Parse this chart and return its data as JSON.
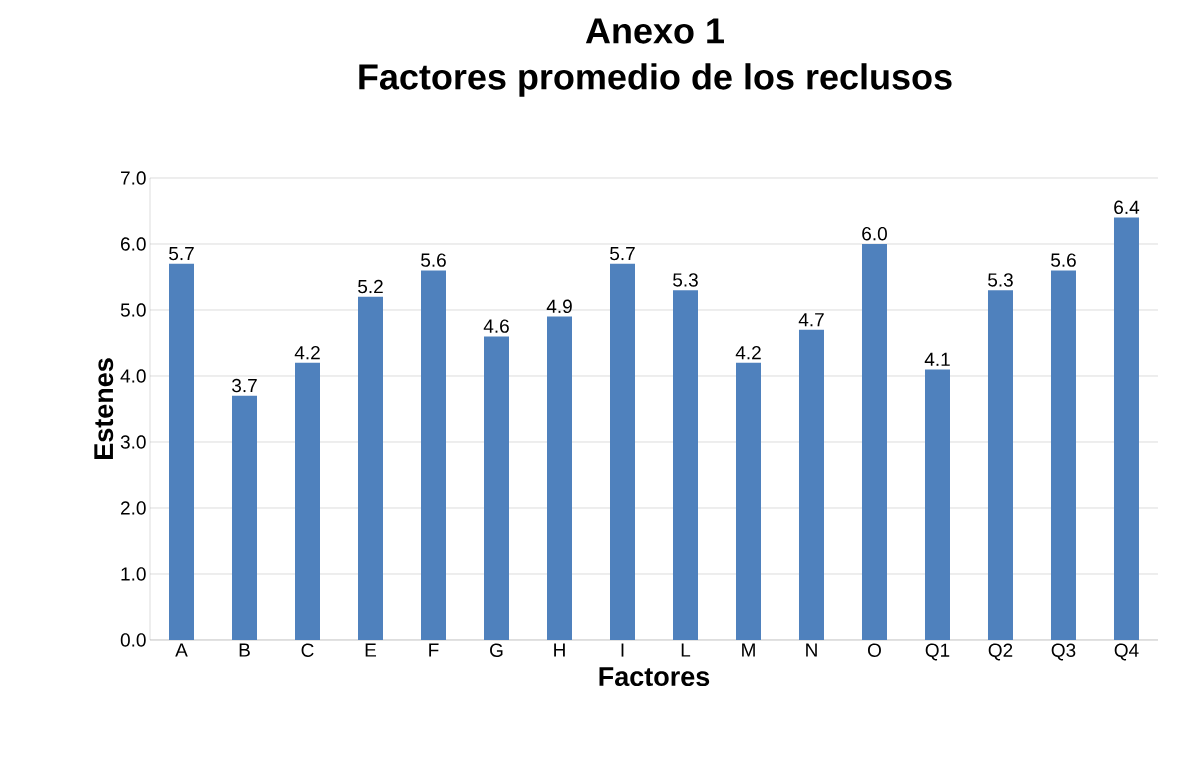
{
  "chart_data": {
    "type": "bar",
    "title": "Anexo 1",
    "subtitle": "Factores promedio de los reclusos",
    "xlabel": "Factores",
    "ylabel": "Estenes",
    "categories": [
      "A",
      "B",
      "C",
      "E",
      "F",
      "G",
      "H",
      "I",
      "L",
      "M",
      "N",
      "O",
      "Q1",
      "Q2",
      "Q3",
      "Q4"
    ],
    "values": [
      5.7,
      3.7,
      4.2,
      5.2,
      5.6,
      4.6,
      4.9,
      5.7,
      5.3,
      4.2,
      4.7,
      6.0,
      4.1,
      5.3,
      5.6,
      6.4
    ],
    "value_labels": [
      "5.7",
      "3.7",
      "4.2",
      "5.2",
      "5.6",
      "4.6",
      "4.9",
      "5.7",
      "5.3",
      "4.2",
      "4.7",
      "6.0",
      "4.1",
      "5.3",
      "5.6",
      "6.4"
    ],
    "color": "#4f81bd",
    "ylim": [
      0,
      7
    ],
    "yticks": [
      {
        "value": 0,
        "label": "0.0"
      },
      {
        "value": 1,
        "label": "1.0"
      },
      {
        "value": 2,
        "label": "2.0"
      },
      {
        "value": 3,
        "label": "3.0"
      },
      {
        "value": 4,
        "label": "4.0"
      },
      {
        "value": 5,
        "label": "5.0"
      },
      {
        "value": 6,
        "label": "6.0"
      },
      {
        "value": 7,
        "label": "7.0"
      }
    ],
    "grid": "y"
  }
}
